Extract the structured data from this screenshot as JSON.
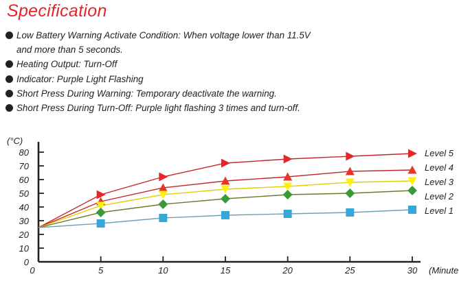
{
  "header": {
    "title": "Specification"
  },
  "specs": [
    {
      "line1": "Low Battery Warning Activate Condition: When voltage lower than 11.5V",
      "line2": "and more than 5 seconds."
    },
    {
      "line1": "Heating Output: Turn-Off",
      "line2": ""
    },
    {
      "line1": "Indicator: Purple Light Flashing",
      "line2": ""
    },
    {
      "line1": "Short Press During Warning: Temporary deactivate the warning.",
      "line2": ""
    },
    {
      "line1": "Short Press During Turn-Off: Purple light flashing 3 times and turn-off.",
      "line2": ""
    }
  ],
  "chart_data": {
    "type": "line",
    "title": "",
    "xlabel": "(Minute",
    "ylabel": "(°C)",
    "xlim": [
      0,
      30
    ],
    "ylim": [
      0,
      80
    ],
    "x_ticks": [
      0,
      5,
      10,
      15,
      20,
      25,
      30
    ],
    "y_ticks": [
      0,
      10,
      20,
      30,
      40,
      50,
      60,
      70,
      80
    ],
    "grid": false,
    "legend_placement": "right",
    "x": [
      0,
      5,
      10,
      15,
      20,
      25,
      30
    ],
    "series": [
      {
        "name": "Level 5",
        "marker": "triangle-right",
        "color": "#e3262a",
        "line_color": "#c0272b",
        "values": [
          25,
          49,
          62,
          72,
          75,
          77,
          79
        ]
      },
      {
        "name": "Level 4",
        "marker": "triangle-up",
        "color": "#e8352a",
        "line_color": "#c0272b",
        "values": [
          25,
          44,
          54,
          59,
          62,
          66,
          67
        ]
      },
      {
        "name": "Level 3",
        "marker": "triangle-down",
        "color": "#fff200",
        "line_color": "#e0d000",
        "values": [
          25,
          41,
          49,
          53,
          55,
          58,
          59
        ]
      },
      {
        "name": "Level 2",
        "marker": "diamond",
        "color": "#3a9a3a",
        "line_color": "#6b7a2a",
        "values": [
          25,
          36,
          42,
          46,
          49,
          50,
          52
        ]
      },
      {
        "name": "Level 1",
        "marker": "square",
        "color": "#35a8d8",
        "line_color": "#6f9fb8",
        "values": [
          25,
          28,
          32,
          34,
          35,
          36,
          38
        ]
      }
    ]
  }
}
